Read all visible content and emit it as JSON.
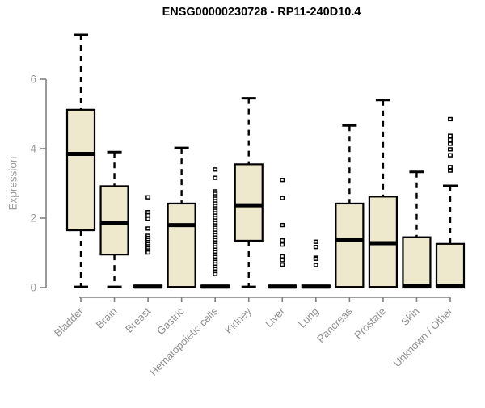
{
  "chart_data": {
    "type": "boxplot",
    "title": "ENSG00000230728 - RP11-240D10.4",
    "ylabel": "Expression",
    "xlabel": "",
    "yticks": [
      0,
      2,
      4,
      6
    ],
    "ylim": [
      0,
      7.4
    ],
    "grid": false,
    "legend": "none",
    "categories": [
      "Bladder",
      "Brain",
      "Breast",
      "Gastric",
      "Hematopoietic cells",
      "Kidney",
      "Liver",
      "Lung",
      "Pancreas",
      "Prostate",
      "Skin",
      "Unknown / Other"
    ],
    "series": [
      {
        "name": "Bladder",
        "low": 0.02,
        "q1": 1.65,
        "median": 3.85,
        "q3": 5.12,
        "high": 7.28,
        "outliers": []
      },
      {
        "name": "Brain",
        "low": 0.02,
        "q1": 0.95,
        "median": 1.85,
        "q3": 2.92,
        "high": 3.9,
        "outliers": []
      },
      {
        "name": "Breast",
        "low": 0,
        "q1": 0,
        "median": 0.03,
        "q3": 0.06,
        "high": 0.06,
        "outliers": [
          2.6,
          2.17,
          2.08,
          1.98,
          1.7,
          1.49,
          1.43,
          1.37,
          1.31,
          1.25,
          1.19,
          1.13,
          1.07,
          1.01
        ]
      },
      {
        "name": "Gastric",
        "low": 0.02,
        "q1": 0.02,
        "median": 1.8,
        "q3": 2.42,
        "high": 4.02,
        "outliers": []
      },
      {
        "name": "Hematopoietic cells",
        "low": 0,
        "q1": 0,
        "median": 0.03,
        "q3": 0.06,
        "high": 0.06,
        "outliers": [
          3.4,
          3.16,
          2.77,
          2.7,
          2.63,
          2.56,
          2.49,
          2.42,
          2.35,
          2.28,
          2.21,
          2.14,
          2.07,
          2.0,
          1.93,
          1.86,
          1.79,
          1.72,
          1.65,
          1.58,
          1.51,
          1.44,
          1.37,
          1.3,
          1.23,
          1.16,
          1.09,
          1.02,
          0.95,
          0.88,
          0.81,
          0.74,
          0.67,
          0.6,
          0.53,
          0.46,
          0.39
        ]
      },
      {
        "name": "Kidney",
        "low": 0.02,
        "q1": 1.35,
        "median": 2.37,
        "q3": 3.55,
        "high": 5.45,
        "outliers": []
      },
      {
        "name": "Liver",
        "low": 0,
        "q1": 0,
        "median": 0.03,
        "q3": 0.06,
        "high": 0.06,
        "outliers": [
          3.1,
          2.58,
          1.8,
          1.36,
          1.24,
          0.9,
          0.79,
          0.66
        ]
      },
      {
        "name": "Lung",
        "low": 0,
        "q1": 0,
        "median": 0.03,
        "q3": 0.06,
        "high": 0.06,
        "outliers": [
          1.32,
          1.17,
          0.86,
          0.83,
          0.65
        ]
      },
      {
        "name": "Pancreas",
        "low": 0.02,
        "q1": 0.02,
        "median": 1.37,
        "q3": 2.42,
        "high": 4.67,
        "outliers": []
      },
      {
        "name": "Prostate",
        "low": 0.02,
        "q1": 0.02,
        "median": 1.28,
        "q3": 2.62,
        "high": 5.4,
        "outliers": []
      },
      {
        "name": "Skin",
        "low": 0,
        "q1": 0,
        "median": 0.05,
        "q3": 1.45,
        "high": 3.33,
        "outliers": []
      },
      {
        "name": "Unknown / Other",
        "low": 0,
        "q1": 0,
        "median": 0.05,
        "q3": 1.26,
        "high": 2.93,
        "outliers": [
          4.85,
          4.37,
          4.26,
          4.14,
          3.98,
          3.81,
          3.47,
          3.37
        ]
      }
    ]
  },
  "style": {
    "box_fill": "#EEE8CD",
    "box_stroke": "#000000",
    "median_color": "#000000",
    "whisker_color": "#000000",
    "outlier_fill": "#ffffff",
    "outlier_stroke": "#000000",
    "axis_color": "#808080",
    "tick_label_color": "#9a9a9a",
    "category_label_color": "#8f8f8f",
    "title_color": "#000000"
  }
}
